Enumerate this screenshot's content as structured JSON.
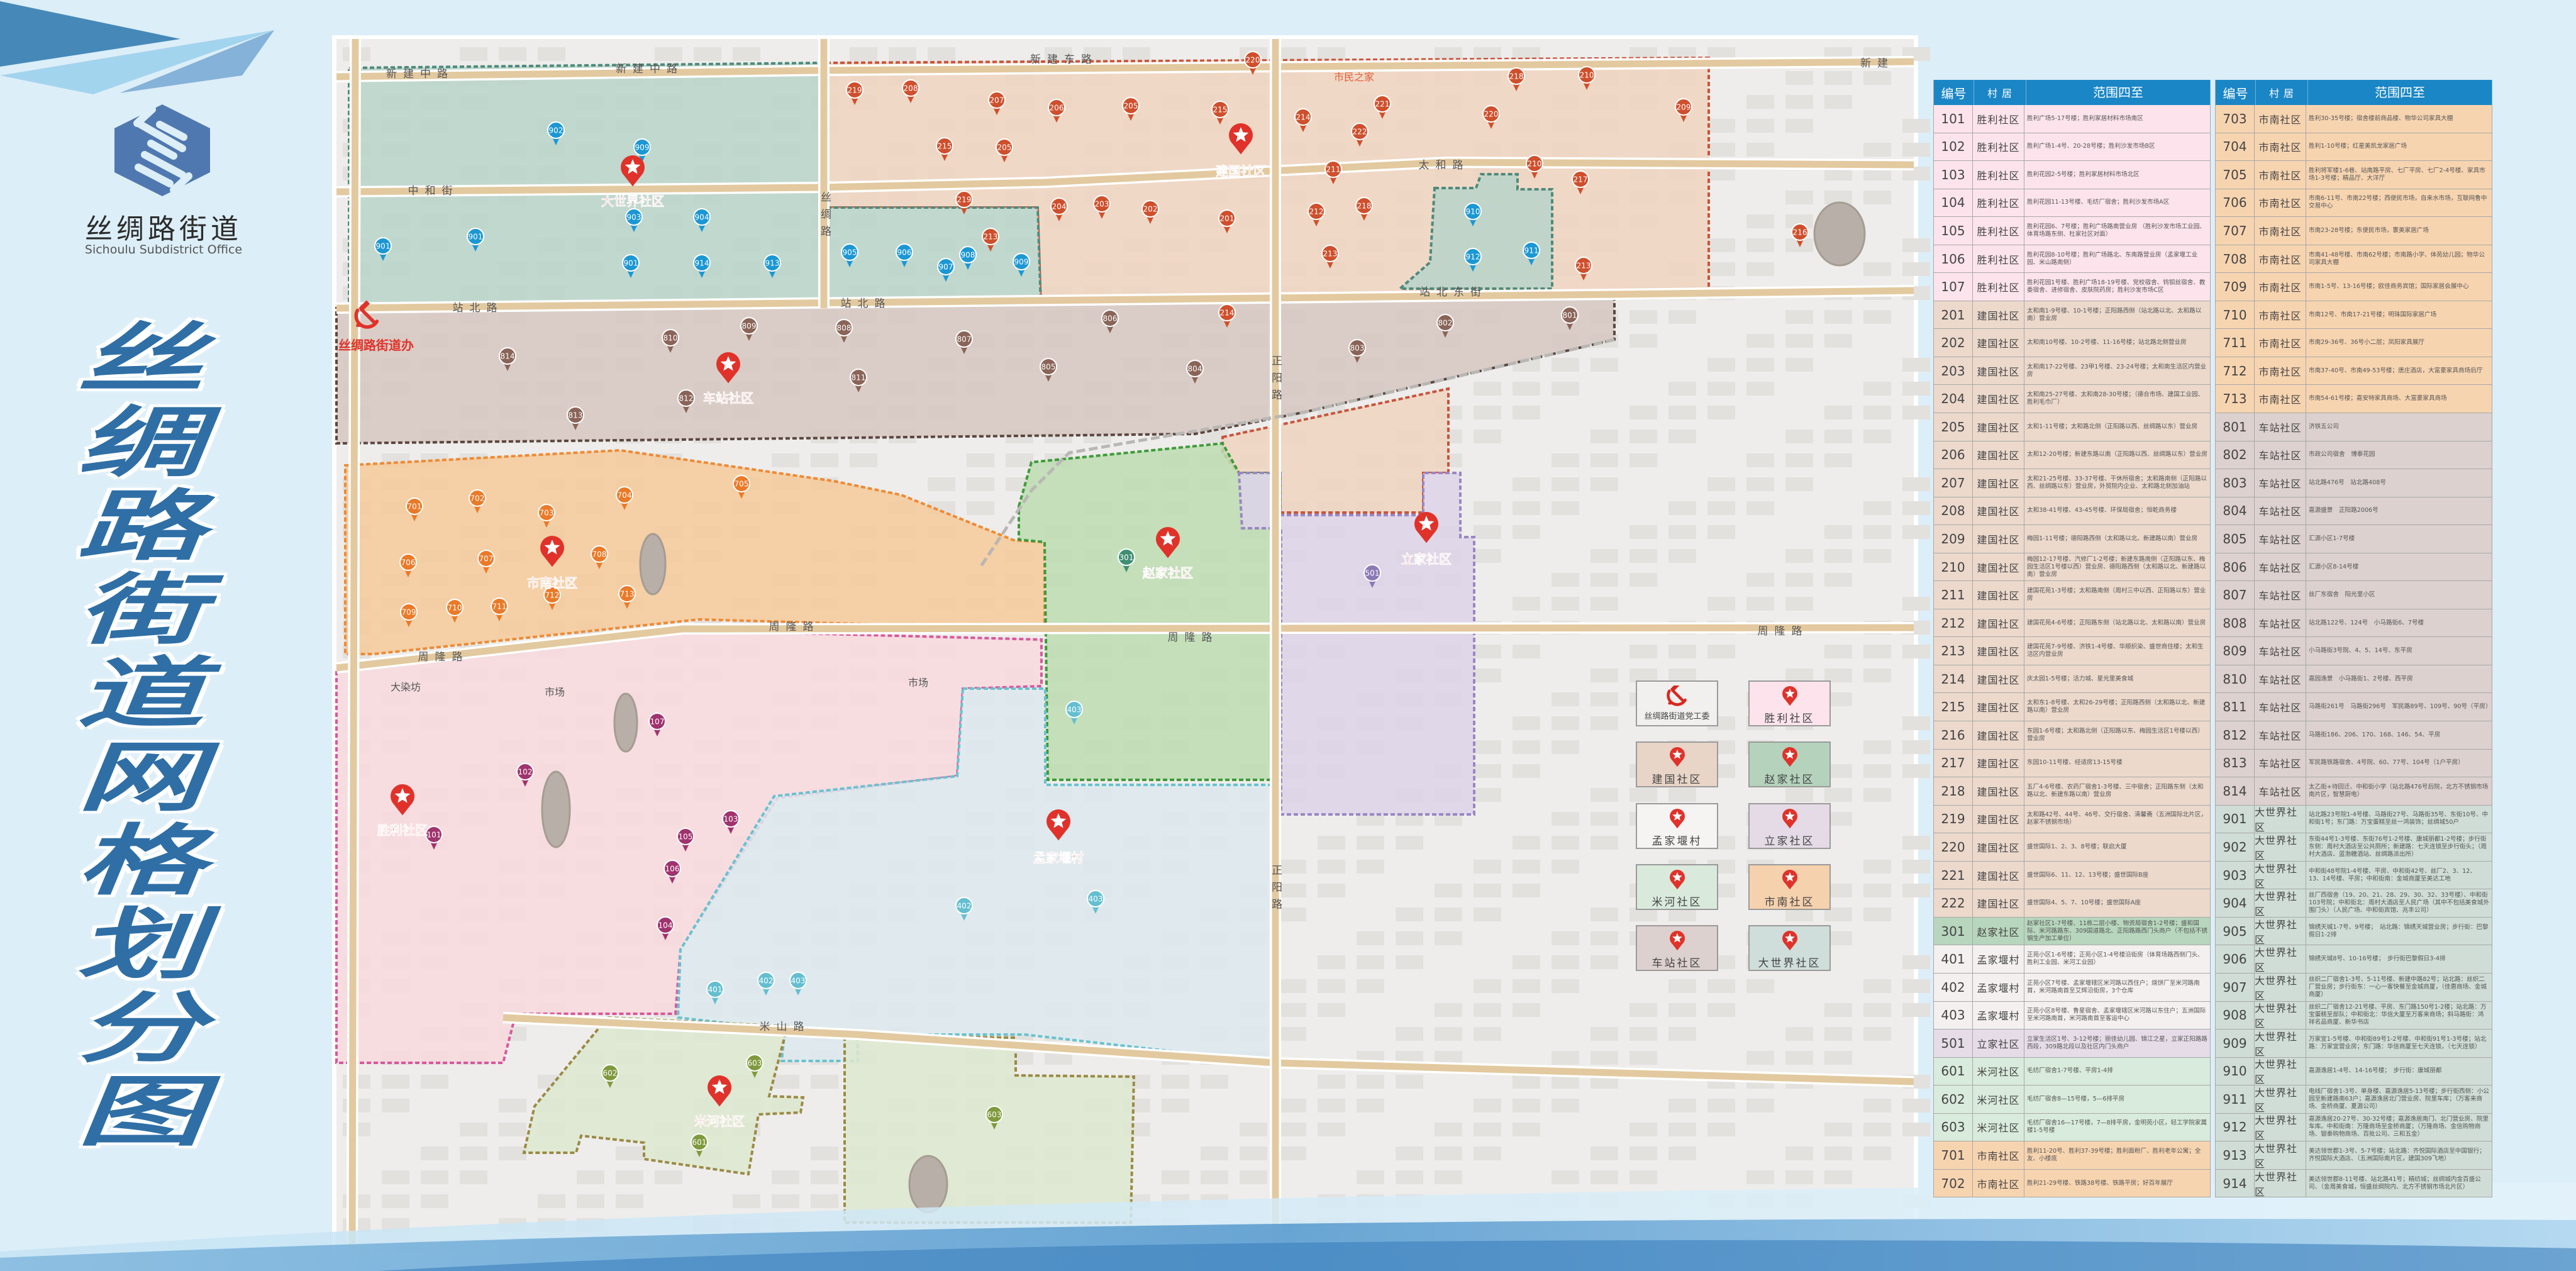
{
  "logo": {
    "name_cn": "丝绸路街道",
    "name_en": "Sichoulu Subdistrict Office"
  },
  "title": "丝绸路街道网格划分图",
  "colors": {
    "header_blue": "#1a86c6",
    "title_blue": "#2f6fa6",
    "marker_red": "#e0322a",
    "regions": {
      "大世界社区": {
        "fill": "#b9d3c9",
        "stroke": "#4e8a7c"
      },
      "建国社区": {
        "fill": "#f0d3c0",
        "stroke": "#c8553d"
      },
      "车站社区": {
        "fill": "#d6c7c1",
        "stroke": "#5b4740"
      },
      "市南社区": {
        "fill": "#f6c999",
        "stroke": "#ee8a35"
      },
      "赵家社区": {
        "fill": "#bcdcb1",
        "stroke": "#3f9a3a"
      },
      "立家社区": {
        "fill": "#ddd3e9",
        "stroke": "#9b86c4"
      },
      "胜利社区": {
        "fill": "#f8d9de",
        "stroke": "#d9589c"
      },
      "孟家堰村": {
        "fill": "#dde9ef",
        "stroke": "#68c2cf"
      },
      "米河社区": {
        "fill": "#dde8cf",
        "stroke": "#9a8a45"
      }
    },
    "pins": {
      "大世界社区": "#1b97d4",
      "建国社区": "#cf4f2c",
      "车站社区": "#8a6458",
      "市南社区": "#ea7a28",
      "赵家社区": "#3f8e72",
      "立家社区": "#8b78b5",
      "胜利社区": "#a0336e",
      "孟家堰村": "#63bfd0",
      "米河社区": "#7f9a3c"
    },
    "table_rows": {
      "胜利社区": "#fde4ec",
      "建国社区": "#ecd9cc",
      "赵家社区": "#b7d6bd",
      "孟家堰村": "#f4f0f0",
      "立家社区": "#e6dce8",
      "米河社区": "#d9ebdc",
      "市南社区": "#f7d4b0",
      "车站社区": "#dcd1ce",
      "大世界社区": "#cfddd6"
    },
    "legend": [
      "#f1f0ef",
      "#fde4ec",
      "#e8d5c8",
      "#b5d3bc",
      "#f6f3f3",
      "#e4dbe6",
      "#d9eadc",
      "#f6d1ad",
      "#dcd1cf",
      "#cfdeda"
    ]
  },
  "map": {
    "party_office": {
      "icon": "hammer-sickle-icon",
      "label": "丝绸路街道办"
    },
    "community_centers": [
      {
        "name": "大世界社区",
        "icon": "star-pin-icon"
      },
      {
        "name": "车站社区",
        "icon": "star-pin-icon"
      },
      {
        "name": "建国社区",
        "icon": "star-pin-icon"
      },
      {
        "name": "市南社区",
        "icon": "star-pin-icon"
      },
      {
        "name": "赵家社区",
        "icon": "star-pin-icon"
      },
      {
        "name": "立家社区",
        "icon": "star-pin-icon"
      },
      {
        "name": "胜利社区",
        "icon": "star-pin-icon"
      },
      {
        "name": "孟家堰村",
        "icon": "star-pin-icon"
      },
      {
        "name": "米河社区",
        "icon": "star-pin-icon"
      }
    ],
    "road_labels": [
      "新建中路",
      "新建中路",
      "新建东路",
      "新建",
      "中和街",
      "太和路",
      "站北路",
      "站北路",
      "站北东街",
      "丝绸路",
      "正阳路",
      "正阳路",
      "周隆路",
      "周隆路",
      "周隆路",
      "周隆路",
      "米山路"
    ],
    "place_labels": [
      "市民之家",
      "大染坊",
      "市场",
      "市场"
    ],
    "pins": [
      {
        "label": "902",
        "community": "大世界社区"
      },
      {
        "label": "909",
        "community": "大世界社区"
      },
      {
        "label": "903",
        "community": "大世界社区"
      },
      {
        "label": "904",
        "community": "大世界社区"
      },
      {
        "label": "901",
        "community": "大世界社区"
      },
      {
        "label": "901",
        "community": "大世界社区"
      },
      {
        "label": "901",
        "community": "大世界社区"
      },
      {
        "label": "914",
        "community": "大世界社区"
      },
      {
        "label": "913",
        "community": "大世界社区"
      },
      {
        "label": "905",
        "community": "大世界社区"
      },
      {
        "label": "906",
        "community": "大世界社区"
      },
      {
        "label": "907",
        "community": "大世界社区"
      },
      {
        "label": "908",
        "community": "大世界社区"
      },
      {
        "label": "909",
        "community": "大世界社区"
      },
      {
        "label": "910",
        "community": "大世界社区"
      },
      {
        "label": "912",
        "community": "大世界社区"
      },
      {
        "label": "911",
        "community": "大世界社区"
      },
      {
        "label": "219",
        "community": "建国社区"
      },
      {
        "label": "208",
        "community": "建国社区"
      },
      {
        "label": "207",
        "community": "建国社区"
      },
      {
        "label": "206",
        "community": "建国社区"
      },
      {
        "label": "205",
        "community": "建国社区"
      },
      {
        "label": "215",
        "community": "建国社区"
      },
      {
        "label": "205",
        "community": "建国社区"
      },
      {
        "label": "219",
        "community": "建国社区"
      },
      {
        "label": "204",
        "community": "建国社区"
      },
      {
        "label": "203",
        "community": "建国社区"
      },
      {
        "label": "213",
        "community": "建国社区"
      },
      {
        "label": "202",
        "community": "建国社区"
      },
      {
        "label": "220",
        "community": "建国社区"
      },
      {
        "label": "215",
        "community": "建国社区"
      },
      {
        "label": "214",
        "community": "建国社区"
      },
      {
        "label": "221",
        "community": "建国社区"
      },
      {
        "label": "222",
        "community": "建国社区"
      },
      {
        "label": "218",
        "community": "建国社区"
      },
      {
        "label": "220",
        "community": "建国社区"
      },
      {
        "label": "210",
        "community": "建国社区"
      },
      {
        "label": "209",
        "community": "建国社区"
      },
      {
        "label": "211",
        "community": "建国社区"
      },
      {
        "label": "210",
        "community": "建国社区"
      },
      {
        "label": "217",
        "community": "建国社区"
      },
      {
        "label": "201",
        "community": "建国社区"
      },
      {
        "label": "212",
        "community": "建国社区"
      },
      {
        "label": "218",
        "community": "建国社区"
      },
      {
        "label": "213",
        "community": "建国社区"
      },
      {
        "label": "213",
        "community": "建国社区"
      },
      {
        "label": "216",
        "community": "建国社区"
      },
      {
        "label": "214",
        "community": "建国社区"
      },
      {
        "label": "814",
        "community": "车站社区"
      },
      {
        "label": "810",
        "community": "车站社区"
      },
      {
        "label": "809",
        "community": "车站社区"
      },
      {
        "label": "808",
        "community": "车站社区"
      },
      {
        "label": "807",
        "community": "车站社区"
      },
      {
        "label": "806",
        "community": "车站社区"
      },
      {
        "label": "805",
        "community": "车站社区"
      },
      {
        "label": "811",
        "community": "车站社区"
      },
      {
        "label": "812",
        "community": "车站社区"
      },
      {
        "label": "813",
        "community": "车站社区"
      },
      {
        "label": "802",
        "community": "车站社区"
      },
      {
        "label": "801",
        "community": "车站社区"
      },
      {
        "label": "803",
        "community": "车站社区"
      },
      {
        "label": "804",
        "community": "车站社区"
      },
      {
        "label": "701",
        "community": "市南社区"
      },
      {
        "label": "702",
        "community": "市南社区"
      },
      {
        "label": "703",
        "community": "市南社区"
      },
      {
        "label": "704",
        "community": "市南社区"
      },
      {
        "label": "705",
        "community": "市南社区"
      },
      {
        "label": "706",
        "community": "市南社区"
      },
      {
        "label": "707",
        "community": "市南社区"
      },
      {
        "label": "708",
        "community": "市南社区"
      },
      {
        "label": "709",
        "community": "市南社区"
      },
      {
        "label": "710",
        "community": "市南社区"
      },
      {
        "label": "711",
        "community": "市南社区"
      },
      {
        "label": "712",
        "community": "市南社区"
      },
      {
        "label": "713",
        "community": "市南社区"
      },
      {
        "label": "301",
        "community": "赵家社区"
      },
      {
        "label": "501",
        "community": "立家社区"
      },
      {
        "label": "107",
        "community": "胜利社区"
      },
      {
        "label": "102",
        "community": "胜利社区"
      },
      {
        "label": "103",
        "community": "胜利社区"
      },
      {
        "label": "101",
        "community": "胜利社区"
      },
      {
        "label": "105",
        "community": "胜利社区"
      },
      {
        "label": "106",
        "community": "胜利社区"
      },
      {
        "label": "104",
        "community": "胜利社区"
      },
      {
        "label": "403",
        "community": "孟家堰村"
      },
      {
        "label": "402",
        "community": "孟家堰村"
      },
      {
        "label": "403",
        "community": "孟家堰村"
      },
      {
        "label": "401",
        "community": "孟家堰村"
      },
      {
        "label": "402",
        "community": "孟家堰村"
      },
      {
        "label": "403",
        "community": "孟家堰村"
      },
      {
        "label": "602",
        "community": "米河社区"
      },
      {
        "label": "603",
        "community": "米河社区"
      },
      {
        "label": "601",
        "community": "米河社区"
      },
      {
        "label": "603",
        "community": "米河社区"
      }
    ]
  },
  "legend": [
    {
      "label": "丝绸路街道党工委",
      "icon": "hammer-sickle-icon"
    },
    {
      "label": "胜利社区",
      "icon": "star-pin-icon"
    },
    {
      "label": "建国社区",
      "icon": "star-pin-icon"
    },
    {
      "label": "赵家社区",
      "icon": "star-pin-icon"
    },
    {
      "label": "孟家堰村",
      "icon": "star-pin-icon"
    },
    {
      "label": "立家社区",
      "icon": "star-pin-icon"
    },
    {
      "label": "米河社区",
      "icon": "star-pin-icon"
    },
    {
      "label": "市南社区",
      "icon": "star-pin-icon"
    },
    {
      "label": "车站社区",
      "icon": "star-pin-icon"
    },
    {
      "label": "大世界社区",
      "icon": "star-pin-icon"
    }
  ],
  "table": {
    "headers": [
      "编号",
      "村 居",
      "范围四至"
    ],
    "left": [
      {
        "code": "101",
        "community": "胜利社区",
        "range": "胜利广场5-17号楼；胜利家居材料市场南区"
      },
      {
        "code": "102",
        "community": "胜利社区",
        "range": "胜利广场1-4号、20-28号楼；胜利沙发市场B区"
      },
      {
        "code": "103",
        "community": "胜利社区",
        "range": "胜利花园2-5号楼；胜利家居材料市场北区"
      },
      {
        "code": "104",
        "community": "胜利社区",
        "range": "胜利花园11-13号楼、毛纺厂宿舍；胜利沙发市场A区"
      },
      {
        "code": "105",
        "community": "胜利社区",
        "range": "胜利花园6、7号楼；胜利广场路南营业房 （胜利沙发市场工业园、体育场路东侧、杜家社区对面）"
      },
      {
        "code": "106",
        "community": "胜利社区",
        "range": "胜利花园8-10号楼；胜利广场路北、东南路营业房（孟家堰工业园、米山路南侧）"
      },
      {
        "code": "107",
        "community": "胜利社区",
        "range": "胜利花园1号楼、胜利广场18-19号楼、党校宿舍、钨钼丝宿舍、教委宿舍、进修宿舍、皮肤院药房；胜利沙发市场C区"
      },
      {
        "code": "201",
        "community": "建国社区",
        "range": "太和南1-9号楼、10-1号楼；正阳路西侧（站北路以北、太和路以南）营业房"
      },
      {
        "code": "202",
        "community": "建国社区",
        "range": "太和南10号楼、10-2号楼、11-16号楼；站北路北侧营业房"
      },
      {
        "code": "203",
        "community": "建国社区",
        "range": "太和南17-22号楼、23甲1号楼、23-24号楼；太和南生活区内营业房"
      },
      {
        "code": "204",
        "community": "建国社区",
        "range": "太和南25-27号楼、太和南28-30号楼；（德合市场、建国工业园、胜利毛巾厂）"
      },
      {
        "code": "205",
        "community": "建国社区",
        "range": "太和1-11号楼；太和路北侧（正阳路以西、丝绸路以东）营业房"
      },
      {
        "code": "206",
        "community": "建国社区",
        "range": "太和12-20号楼；新建东路以南（正阳路以西、丝绸路以东）营业房"
      },
      {
        "code": "207",
        "community": "建国社区",
        "range": "太和21-25号楼、33-37号楼、干休所宿舍；太和路南侧（正阳路以西、丝绸路以东）营业房，外贸院内企业、太和路北侧加油站"
      },
      {
        "code": "208",
        "community": "建国社区",
        "range": "太和38-41号楼、43-45号楼、环保局宿舍；恒乾商务楼"
      },
      {
        "code": "209",
        "community": "建国社区",
        "range": "梅园1-11号楼；德阳路西侧（太和路以北、新建路以南）营业房"
      },
      {
        "code": "210",
        "community": "建国社区",
        "range": "梅园12-17号楼、汽修厂1-2号楼；新建东路南侧（正阳路以东、梅园生活区1号楼以西）营业房、德阳路西侧（太和路以北、新建路以南）营业房"
      },
      {
        "code": "211",
        "community": "建国社区",
        "range": "建国花苑1-3号楼；太和路南侧（周村三中以西、正阳路以东）营业房"
      },
      {
        "code": "212",
        "community": "建国社区",
        "range": "建国花苑4-6号楼；正阳路东侧（站北路以北、太和路以南）营业房"
      },
      {
        "code": "213",
        "community": "建国社区",
        "range": "建国花苑7-9号楼、济铁1-4号楼、华顺织染、盛世商住楼；太和生活区内营业房"
      },
      {
        "code": "214",
        "community": "建国社区",
        "range": "庆太园1-5号楼；活力城、星光里美食城"
      },
      {
        "code": "215",
        "community": "建国社区",
        "range": "太和东1-8号楼、太和26-29号楼；正阳路西侧（太和路以北、新建路以南）营业房"
      },
      {
        "code": "216",
        "community": "建国社区",
        "range": "东园1-6号楼；太和路北侧（正阳路以东、梅园生活区1号楼以西）营业房"
      },
      {
        "code": "217",
        "community": "建国社区",
        "range": "东园10-11号楼、经适房13-15号楼"
      },
      {
        "code": "218",
        "community": "建国社区",
        "range": "五厂4-6号楼、农药厂宿舍1-3号楼、三中宿舍；正阳路东侧（太和路以北、新建东路以南）营业房"
      },
      {
        "code": "219",
        "community": "建国社区",
        "range": "太和路42号、44号、46号、交行宿舍、清馨斋（五洲国际北片区，赵家不锈钢市场）"
      },
      {
        "code": "220",
        "community": "建国社区",
        "range": "盛世国际1、2、3、8号楼；联启大厦"
      },
      {
        "code": "221",
        "community": "建国社区",
        "range": "盛世国际6、11、12、13号楼；盛世国际B座"
      },
      {
        "code": "222",
        "community": "建国社区",
        "range": "盛世国际4、5、7、10号楼；盛世国际A座"
      },
      {
        "code": "301",
        "community": "赵家社区",
        "range": "赵家社区1-7号楼、11栋二层小楼、物资局宿舍1-2号楼；盛和国际、米河路路东、309国道路北、正阳路路西门头商户（不包括不锈钢生产加工单位）"
      },
      {
        "code": "401",
        "community": "孟家堰村",
        "range": "正苑小区1-6号楼；正苑小区1-4号楼沿街房（体育场路西侧门头、胜利工业园、米河工业园）"
      },
      {
        "code": "402",
        "community": "孟家堰村",
        "range": "正苑小区7号楼、孟家堰辖区米河路以西住户；烧饼厂至米河路南首，米河路南首至艾辉沿街房，3个仓库"
      },
      {
        "code": "403",
        "community": "孟家堰村",
        "range": "正苑小区8号楼、鲁星宿舍、孟家堰辖区米河路以东住户；五洲国际至米河路南首，米河路南首至客运中心"
      },
      {
        "code": "501",
        "community": "立家社区",
        "range": "立家生活区1号、3-12号楼；丽佳幼儿园、锦江之星，立家正阳路路西段，309路北段以及社区内门头商户"
      },
      {
        "code": "601",
        "community": "米河社区",
        "range": "毛纺厂宿舍1-7号楼、平房1-4排"
      },
      {
        "code": "602",
        "community": "米河社区",
        "range": "毛纺厂宿舍8—15号楼，5—6排平房"
      },
      {
        "code": "603",
        "community": "米河社区",
        "range": "毛纺厂宿舍16—17号楼，7—8排平房，金明苑小区，轻工学院家属楼1-5号楼"
      },
      {
        "code": "701",
        "community": "市南社区",
        "range": "胜利11-20号、胜利37-39号楼；胜利面粉厂、胜利老年公寓；全友、小楼底"
      },
      {
        "code": "702",
        "community": "市南社区",
        "range": "胜利21-29号楼、铁路38号楼、铁路平房；好百年展厅"
      }
    ],
    "right": [
      {
        "code": "703",
        "community": "市南社区",
        "range": "胜利30-35号楼；宿舍楼前商品楼、物华公司家具大棚"
      },
      {
        "code": "704",
        "community": "市南社区",
        "range": "胜利1-10号楼；红星美凯龙家居广场"
      },
      {
        "code": "705",
        "community": "市南社区",
        "range": "胜利将军楼1-6巷、站南路平房、七厂平房、七厂2-4号楼、家具市场1-3号楼；精品厅、大洋厅"
      },
      {
        "code": "706",
        "community": "市南社区",
        "range": "市南6-11号、市南22号楼；西便民市场，自来水市场，互联网鲁中交易中心"
      },
      {
        "code": "707",
        "community": "市南社区",
        "range": "市南23-28号楼；东便民市场，寰美家居广场"
      },
      {
        "code": "708",
        "community": "市南社区",
        "range": "市南41-48号楼、市南62号楼；市南路小学、体苑幼儿园；物华公司家具大棚"
      },
      {
        "code": "709",
        "community": "市南社区",
        "range": "市南1-5号、13-16号楼；欧佳商务宾馆；国际家居会展中心"
      },
      {
        "code": "710",
        "community": "市南社区",
        "range": "市南12号、市南17-21号楼；明珠国际家居广场"
      },
      {
        "code": "711",
        "community": "市南社区",
        "range": "市南29-36号、36号小二层；凤阳家具展厅"
      },
      {
        "code": "712",
        "community": "市南社区",
        "range": "市南37-40号、市南49-53号楼；唐庄酒店，大富豪家具商场后厅"
      },
      {
        "code": "713",
        "community": "市南社区",
        "range": "市南54-61号楼；嘉安特家具商场、大富豪家具商场"
      },
      {
        "code": "801",
        "community": "车站社区",
        "range": "济铁五公司"
      },
      {
        "code": "802",
        "community": "车站社区",
        "range": "市政公司宿舍　博泰花园"
      },
      {
        "code": "803",
        "community": "车站社区",
        "range": "站北路476号　站北路408号"
      },
      {
        "code": "804",
        "community": "车站社区",
        "range": "嘉源盛景　正阳路2006号"
      },
      {
        "code": "805",
        "community": "车站社区",
        "range": "汇源小区1-7号楼"
      },
      {
        "code": "806",
        "community": "车站社区",
        "range": "汇源小区8-14号楼"
      },
      {
        "code": "807",
        "community": "车站社区",
        "range": "丝厂东宿舍　阳光里小区"
      },
      {
        "code": "808",
        "community": "车站社区",
        "range": "站北路122号、124号　小马路街6、7号楼"
      },
      {
        "code": "809",
        "community": "车站社区",
        "range": "小马路街3号院、4、5、14号、东平房"
      },
      {
        "code": "810",
        "community": "车站社区",
        "range": "嘉园逸景　小马路街1、2号楼、西平房"
      },
      {
        "code": "811",
        "community": "车站社区",
        "range": "马路街261号　马路街296号　军民路89号、109号、90号（平房）"
      },
      {
        "code": "812",
        "community": "车站社区",
        "range": "马路街186、206、170、168、146、54、平房"
      },
      {
        "code": "813",
        "community": "车站社区",
        "range": "军民路铁路宿舍、4号院、60、77号、104号（1户平房）"
      },
      {
        "code": "814",
        "community": "车站社区",
        "range": "太乙街+待回迁、中和街小学（站北路476号后院，北方不锈钢市场南片区，智慧厨电）"
      },
      {
        "code": "901",
        "community": "大世界社区",
        "range": "站北路23号院1-4号楼、马路街27号、马路街35号、东街10号、中和街1号；东门路：万宝蛋糕至丝一鸿装饰；丝绸城50户"
      },
      {
        "code": "902",
        "community": "大世界社区",
        "range": "东街44号1-3号楼、东街76号1-2号楼、康城丽都1-2号楼；步行街东侧：周村大酒店至公共厕所；新建路：七天连锁至步行街头；（周村大酒店、蓝渤糖酒站、丝绸路派出所）"
      },
      {
        "code": "903",
        "community": "大世界社区",
        "range": "中和街48号院1-4号楼、平房、中和街42号、丝厂2、3、12、13、14号楼、平房；中和街南：金城商厦至美达工地"
      },
      {
        "code": "904",
        "community": "大世界社区",
        "range": "丝厂西宿舍（19、20、21、28、29、30、32、33号楼）、中和街103号院；中和街北：周村大酒店至人民广场（其中不包括美食城外围门头）（人民广场、中和街宾馆、兆丰公司）"
      },
      {
        "code": "905",
        "community": "大世界社区",
        "range": "锦绣天城1-7号、9号楼；　站北路：锦绣天城营业房；步行街：巴黎假日1-2排"
      },
      {
        "code": "906",
        "community": "大世界社区",
        "range": "锦绣天城8号、10-16号楼；　步行街巴黎假日3-4排"
      },
      {
        "code": "907",
        "community": "大世界社区",
        "range": "丝织二厂宿舍1-3号、5-11号楼、新建中路82号；站北路：丝织二厂营业房；步行街东：一心一客快餐至金城商厦，（佳惠商场、金城商厦）"
      },
      {
        "code": "908",
        "community": "大世界社区",
        "range": "丝织二厂宿舍12-21号楼、平房、东门路150号1-2楼；站北路：万宝蛋糕至部队；中和街北：华信大厦至万客来商场；斜马路街：鸿祥名品商厦、新华书店"
      },
      {
        "code": "909",
        "community": "大世界社区",
        "range": "万家宜1-5号楼、中和街89号1-2号楼、中和街91号1-3号楼；站北路：万家宜营业房；东门路：华信商厦至七天连锁，（七天连锁）"
      },
      {
        "code": "910",
        "community": "大世界社区",
        "range": "嘉源逸居1-4号、14-16号楼；　步行街：康城丽都"
      },
      {
        "code": "911",
        "community": "大世界社区",
        "range": "电线厂宿舍1-3号、单身楼、嘉源逸居5-13号楼；步行街西侧：小公园至新建路南63户；嘉源逸居北门营业房、院里车库；（万客来商场、金桥商厦、夏源公司）"
      },
      {
        "code": "912",
        "community": "大世界社区",
        "range": "嘉源逸居20-27号、30-32号楼；嘉源逸居南门、北门营业房、院里车库。中和街南：万隆商场至金桥商厦；（万隆商场、金信购物商场、银泰购物商场、百批公司、三和五金）"
      },
      {
        "code": "913",
        "community": "大世界社区",
        "range": "美达领世郡1-3号、5-7号楼；站北路：齐悦国际酒店至中国银行；齐悦国际大酒店、（五洲国际南片区，建国309飞地）"
      },
      {
        "code": "914",
        "community": "大世界社区",
        "range": "美达领世郡8-11号楼、站北路41号；精纺城；丝绸城内金百盛公司、（金周美食城，恒盛丝绸院内、北方不锈钢市场北片区）"
      }
    ]
  }
}
